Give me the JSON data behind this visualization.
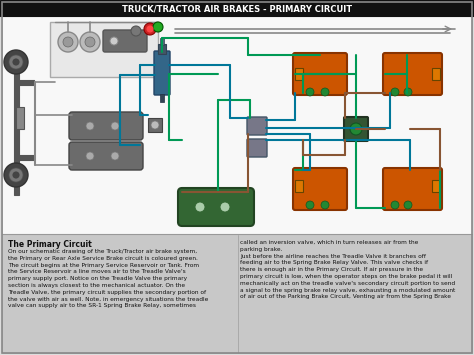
{
  "title": "TRUCK/TRACTOR AIR BRAKES - PRIMARY CIRCUIT",
  "title_bg": "#111111",
  "title_color": "#ffffff",
  "diagram_bg": "#f5f5f5",
  "text_bg": "#c8c8c8",
  "green_line": "#009955",
  "teal_line": "#007799",
  "brown_line": "#885533",
  "gray_comp": "#6b6b6b",
  "gray_light": "#999999",
  "orange_comp": "#cc5500",
  "orange_bright": "#dd7700",
  "green_tank": "#336633",
  "green_tank2": "#448844",
  "dark_green_line": "#006633",
  "blue_valve": "#336688",
  "red_dot": "#cc2222",
  "green_dot": "#22aa22",
  "text_bold": "The Primary Circuit",
  "text_left": "On our schematic drawing of the Truck/Tractor air brake system,\nthe Primary or Rear Axle Service Brake circuit is coloured green.\nThe circuit begins at the Primary Service Reservoir or Tank. From\nthe Service Reservoir a line moves air to the Treadle Valve's\nprimary supply port. Notice on the Treadle Valve the primary\nsection is always closest to the mechanical actuator. On the\nTreadle Valve, the primary circuit supplies the secondary portion of\nthe valve with air as well. Note, in emergency situations the treadle\nvalve can supply air to the SR-1 Spring Brake Relay, sometimes",
  "text_right": "called an inversion valve, which in turn releases air from the\nparking brake.\nJust before the airline reaches the Treadle Valve it branches off\nfeeding air to the Spring Brake Relay Valve. This valve checks if\nthere is enough air in the Primary Circuit. If air pressure in the\nprimary circuit is low, when the operator steps on the brake pedal it will\nmechanically act on the treadle valve's secondary circuit portion to send\na signal to the spring brake relay valve, exhausting a modulated amount\nof air out of the Parking Brake Circuit, Venting air from the Spring Brake",
  "outer_border": "#aaaaaa",
  "lw_main": 1.5,
  "lw_thick": 2.0
}
